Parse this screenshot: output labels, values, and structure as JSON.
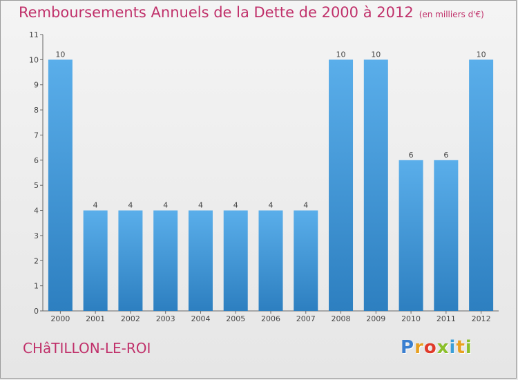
{
  "header": {
    "title": "Remboursements Annuels de la Dette de 2000 à 2012",
    "subtitle": "(en milliers d'€)"
  },
  "footer": {
    "commune": "CHâTILLON-LE-ROI",
    "logo_letters": [
      "P",
      "r",
      "o",
      "x",
      "i",
      "t",
      "i"
    ],
    "logo_colors": [
      "#3a7fd0",
      "#e8a020",
      "#e03a2a",
      "#8bbf2a",
      "#3a9fd8",
      "#e8a020",
      "#8bbf2a"
    ]
  },
  "chart_data": {
    "type": "bar",
    "categories": [
      "2000",
      "2001",
      "2002",
      "2003",
      "2004",
      "2005",
      "2006",
      "2007",
      "2008",
      "2009",
      "2010",
      "2011",
      "2012"
    ],
    "values": [
      10,
      4,
      4,
      4,
      4,
      4,
      4,
      4,
      10,
      10,
      6,
      6,
      10
    ],
    "data_labels": [
      "10",
      "4",
      "4",
      "4",
      "4",
      "4",
      "4",
      "4",
      "10",
      "10",
      "6",
      "6",
      "10"
    ],
    "y_ticks": [
      "0",
      "1",
      "2",
      "3",
      "4",
      "5",
      "6",
      "7",
      "8",
      "9",
      "10",
      "11"
    ],
    "ylim": [
      0,
      11
    ],
    "grid": false,
    "bar_color_top": "#5aaeea",
    "bar_color_bottom": "#2d7fc0"
  }
}
